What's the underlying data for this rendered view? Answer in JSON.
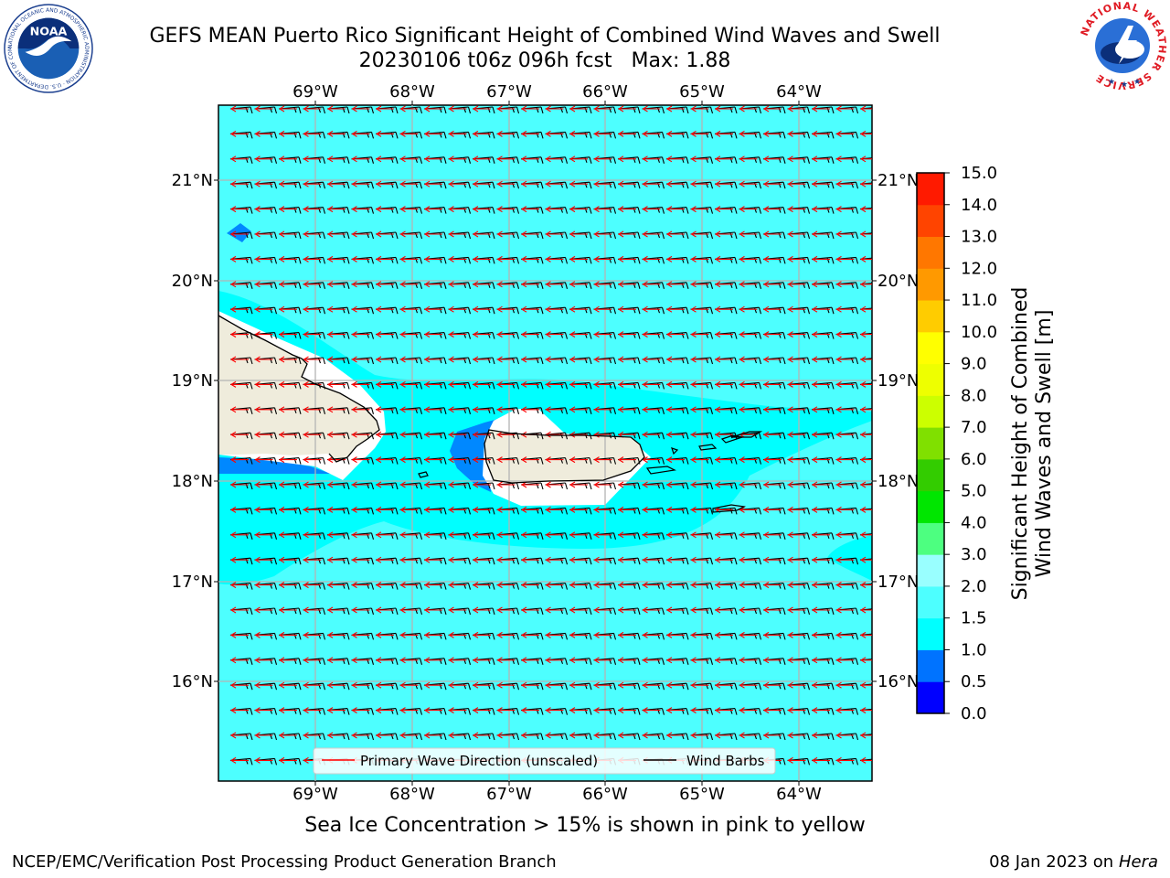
{
  "header": {
    "title_line1": "GEFS MEAN Puerto Rico Significant Height of Combined Wind Waves and Swell",
    "title_line2": "20230106 t06z 096h fcst   Max: 1.88"
  },
  "logos": {
    "left_icon": "noaa-logo-icon",
    "left_text": "NOAA",
    "left_ring_text": "NATIONAL OCEANIC AND ATMOSPHERIC ADMINISTRATION · U.S. DEPARTMENT OF COMMERCE",
    "right_icon": "nws-logo-icon",
    "right_ring_text": "NATIONAL WEATHER SERVICE"
  },
  "map": {
    "lon_ticks": [
      "69°W",
      "68°W",
      "67°W",
      "66°W",
      "65°W",
      "64°W"
    ],
    "lat_ticks": [
      "21°N",
      "20°N",
      "19°N",
      "18°N",
      "17°N",
      "16°N"
    ],
    "lat_ticks_right": [
      "21°N",
      "20°N",
      "19°N",
      "18°N",
      "17°N",
      "16°N"
    ],
    "colors": {
      "ocean_1_5": "#00ffff",
      "ocean_2_0": "#4dffff",
      "ocean_1_0": "#0088ff",
      "ocean_0_5": "#0033ff",
      "land": "#efecdc",
      "nodata": "#ffffff",
      "wave_arrow": "#ff0000",
      "wind_barb": "#000000",
      "grid": "#b4b4b4"
    }
  },
  "legend": {
    "wave_direction": "Primary Wave Direction (unscaled)",
    "wind_barbs": "Wind Barbs"
  },
  "colorbar": {
    "label_line1": "Significant Height of Combined",
    "label_line2": "Wind Waves and Swell [m]",
    "ticks": [
      "0.0",
      "0.5",
      "1.0",
      "1.5",
      "2.0",
      "3.0",
      "4.0",
      "5.0",
      "6.0",
      "7.0",
      "8.0",
      "9.0",
      "10.0",
      "11.0",
      "12.0",
      "13.0",
      "14.0",
      "15.0"
    ],
    "colors": [
      "#0000ff",
      "#0073ff",
      "#00ffff",
      "#4dffff",
      "#99ffff",
      "#4dff80",
      "#00e600",
      "#33cc00",
      "#80e000",
      "#ccff00",
      "#eeff00",
      "#ffff00",
      "#ffcc00",
      "#ff9900",
      "#ff7700",
      "#ff4400",
      "#ff1a00"
    ]
  },
  "captions": {
    "ice": "Sea Ice Concentration > 15% is shown in pink to yellow"
  },
  "footer": {
    "left": "NCEP/EMC/Verification Post Processing Product Generation Branch",
    "date": "08 Jan 2023 on ",
    "host": "Hera"
  }
}
